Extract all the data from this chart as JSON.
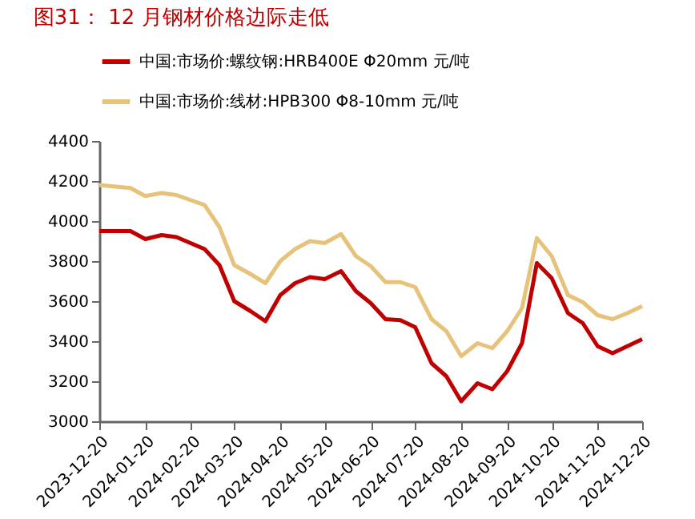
{
  "chart_data": {
    "type": "line",
    "title": "图31：  12 月钢材价格边际走低",
    "x": [
      "2023-12-20",
      "2024-01-10",
      "2024-01-20",
      "2024-01-31",
      "2024-02-10",
      "2024-02-29",
      "2024-03-10",
      "2024-03-20",
      "2024-03-31",
      "2024-04-10",
      "2024-04-20",
      "2024-04-30",
      "2024-05-10",
      "2024-05-20",
      "2024-05-31",
      "2024-06-10",
      "2024-06-20",
      "2024-06-30",
      "2024-07-10",
      "2024-07-20",
      "2024-07-31",
      "2024-08-10",
      "2024-08-20",
      "2024-08-31",
      "2024-09-10",
      "2024-09-20",
      "2024-09-30",
      "2024-10-10",
      "2024-10-20",
      "2024-10-31",
      "2024-11-10",
      "2024-11-20",
      "2024-11-30",
      "2024-12-10",
      "2024-12-20"
    ],
    "series": [
      {
        "name": "中国:市场价:螺纹钢:HRB400E Φ20mm 元/吨",
        "color": "#c00000",
        "values": [
          3950,
          3950,
          3910,
          3930,
          3920,
          3860,
          3780,
          3600,
          3550,
          3500,
          3630,
          3690,
          3720,
          3710,
          3750,
          3650,
          3590,
          3510,
          3505,
          3470,
          3290,
          3225,
          3100,
          3190,
          3160,
          3250,
          3390,
          3790,
          3715,
          3540,
          3490,
          3375,
          3340,
          3375,
          3410
        ]
      },
      {
        "name": "中国:市场价:线材:HPB300 Φ8-10mm 元/吨",
        "color": "#e6c27a",
        "values": [
          4180,
          4165,
          4125,
          4140,
          4130,
          4080,
          3970,
          3780,
          3735,
          3690,
          3800,
          3860,
          3900,
          3890,
          3935,
          3825,
          3775,
          3695,
          3695,
          3670,
          3510,
          3450,
          3325,
          3390,
          3365,
          3450,
          3565,
          3915,
          3825,
          3630,
          3595,
          3530,
          3510,
          3540,
          3575
        ]
      }
    ],
    "xlim": [
      "2023-12-20",
      "2024-12-20"
    ],
    "xticks": [
      "2023-12-20",
      "2024-01-20",
      "2024-02-20",
      "2024-03-20",
      "2024-04-20",
      "2024-05-20",
      "2024-06-20",
      "2024-07-20",
      "2024-08-20",
      "2024-09-20",
      "2024-10-20",
      "2024-11-20",
      "2024-12-20"
    ],
    "ylim": [
      3000,
      4400
    ],
    "yticks": [
      3000,
      3200,
      3400,
      3600,
      3800,
      4000,
      4200,
      4400
    ],
    "grid": false,
    "legend": "top",
    "marker": "none",
    "line_style": "solid"
  }
}
